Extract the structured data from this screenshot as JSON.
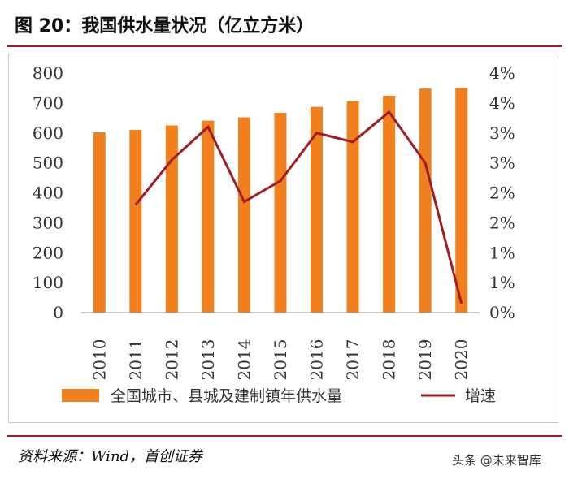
{
  "header": {
    "title": "图 20：我国供水量状况（亿立方米）"
  },
  "footer": {
    "source": "资料来源：Wind，首创证券",
    "watermark": "头条 @未来智库"
  },
  "colors": {
    "bar": "#f07f1e",
    "line": "#a01d24",
    "rule": "#a01d24"
  },
  "chart_data": {
    "type": "bar+line",
    "categories": [
      "2010",
      "2011",
      "2012",
      "2013",
      "2014",
      "2015",
      "2016",
      "2017",
      "2018",
      "2019",
      "2020"
    ],
    "series": [
      {
        "name": "全国城市、县城及建制镇年供水量",
        "type": "bar",
        "axis": "left",
        "values": [
          602,
          610,
          625,
          641,
          652,
          667,
          687,
          706,
          724,
          748,
          750
        ]
      },
      {
        "name": "增速",
        "type": "line",
        "axis": "right",
        "values": [
          null,
          1.8,
          2.55,
          3.1,
          1.85,
          2.2,
          3.0,
          2.85,
          3.35,
          2.5,
          0.15
        ]
      }
    ],
    "left_axis": {
      "min": 0,
      "max": 800,
      "ticks": [
        "0",
        "100",
        "200",
        "300",
        "400",
        "500",
        "600",
        "700",
        "800"
      ]
    },
    "right_axis": {
      "min": 0,
      "max": 4,
      "ticks": [
        "0%",
        "1%",
        "1%",
        "2%",
        "2%",
        "3%",
        "3%",
        "4%",
        "4%"
      ]
    },
    "legend": {
      "position": "bottom"
    }
  }
}
